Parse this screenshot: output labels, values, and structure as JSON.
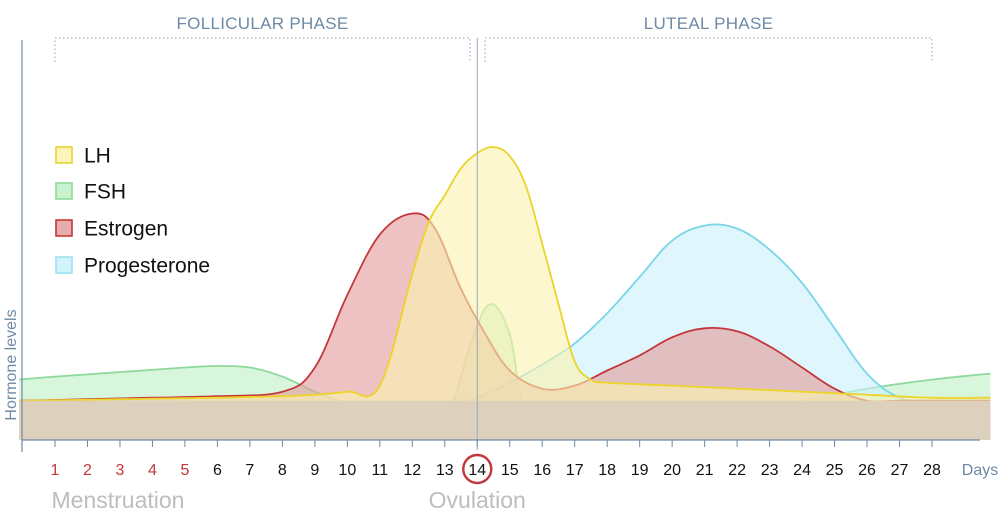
{
  "chart_data": {
    "type": "area",
    "ylabel": "Hormone levels",
    "xlabel": "Days",
    "x": [
      1,
      2,
      3,
      4,
      5,
      6,
      7,
      8,
      9,
      10,
      11,
      12,
      13,
      14,
      15,
      16,
      17,
      18,
      19,
      20,
      21,
      22,
      23,
      24,
      25,
      26,
      27,
      28
    ],
    "xlim": [
      -0.1,
      29.8
    ],
    "ylim": [
      0,
      1
    ],
    "menstruation_days": [
      1,
      2,
      3,
      4,
      5
    ],
    "ovulation_day": 14,
    "phases": [
      {
        "name": "FOLLICULAR PHASE",
        "start_day": 1,
        "end_day": 13.8
      },
      {
        "name": "LUTEAL PHASE",
        "start_day": 14.2,
        "end_day": 28
      }
    ],
    "annotations": {
      "menstruation": "Menstruation",
      "ovulation": "Ovulation"
    },
    "series": [
      {
        "name": "FSH",
        "color": "#9be3a8",
        "fill": "#bff0c6",
        "line": "#8fd99c",
        "points": [
          [
            -0.1,
            0.2
          ],
          [
            1,
            0.21
          ],
          [
            3,
            0.225
          ],
          [
            5,
            0.24
          ],
          [
            6,
            0.245
          ],
          [
            7,
            0.24
          ],
          [
            8,
            0.21
          ],
          [
            9,
            0.16
          ],
          [
            10,
            0.12
          ],
          [
            11,
            0.09
          ],
          [
            12,
            0.08
          ],
          [
            12.8,
            0.09
          ],
          [
            13.3,
            0.14
          ],
          [
            13.8,
            0.32
          ],
          [
            14.4,
            0.45
          ],
          [
            15,
            0.35
          ],
          [
            15.4,
            0.12
          ],
          [
            16,
            0.1
          ],
          [
            17,
            0.1
          ],
          [
            18,
            0.1
          ],
          [
            20,
            0.105
          ],
          [
            22,
            0.11
          ],
          [
            24,
            0.13
          ],
          [
            26,
            0.17
          ],
          [
            28,
            0.2
          ],
          [
            29.8,
            0.22
          ]
        ]
      },
      {
        "name": "Progesterone",
        "color": "#9fe3f2",
        "fill": "#c9f1fa",
        "line": "#7ad5ea",
        "points": [
          [
            -0.1,
            0.13
          ],
          [
            2,
            0.13
          ],
          [
            4,
            0.13
          ],
          [
            6,
            0.125
          ],
          [
            8,
            0.12
          ],
          [
            10,
            0.115
          ],
          [
            11,
            0.11
          ],
          [
            12,
            0.1
          ],
          [
            13,
            0.11
          ],
          [
            14,
            0.14
          ],
          [
            15,
            0.19
          ],
          [
            16,
            0.25
          ],
          [
            17,
            0.32
          ],
          [
            18,
            0.42
          ],
          [
            19,
            0.54
          ],
          [
            20,
            0.66
          ],
          [
            21,
            0.71
          ],
          [
            22,
            0.7
          ],
          [
            23,
            0.63
          ],
          [
            24,
            0.52
          ],
          [
            25,
            0.37
          ],
          [
            26,
            0.22
          ],
          [
            27,
            0.14
          ],
          [
            28,
            0.13
          ],
          [
            29.8,
            0.13
          ]
        ]
      },
      {
        "name": "Estrogen",
        "color": "#e08585",
        "fill": "#e49c9c",
        "line": "#c3373a",
        "points": [
          [
            -0.1,
            0.13
          ],
          [
            2,
            0.135
          ],
          [
            4,
            0.14
          ],
          [
            6,
            0.145
          ],
          [
            8,
            0.16
          ],
          [
            9,
            0.24
          ],
          [
            10,
            0.48
          ],
          [
            11,
            0.68
          ],
          [
            12,
            0.75
          ],
          [
            12.7,
            0.7
          ],
          [
            13.5,
            0.5
          ],
          [
            14.2,
            0.36
          ],
          [
            15,
            0.23
          ],
          [
            16,
            0.17
          ],
          [
            17,
            0.18
          ],
          [
            18,
            0.23
          ],
          [
            19,
            0.28
          ],
          [
            20,
            0.34
          ],
          [
            21,
            0.37
          ],
          [
            22,
            0.36
          ],
          [
            23,
            0.31
          ],
          [
            24,
            0.24
          ],
          [
            25,
            0.17
          ],
          [
            26,
            0.13
          ],
          [
            27,
            0.13
          ],
          [
            28,
            0.13
          ],
          [
            29.8,
            0.13
          ]
        ]
      },
      {
        "name": "LH",
        "color": "#f1e35a",
        "fill": "#faf2b0",
        "line": "#ecd42a",
        "points": [
          [
            -0.1,
            0.13
          ],
          [
            3,
            0.135
          ],
          [
            6,
            0.14
          ],
          [
            8,
            0.145
          ],
          [
            9,
            0.15
          ],
          [
            10,
            0.16
          ],
          [
            11,
            0.18
          ],
          [
            12,
            0.55
          ],
          [
            12.5,
            0.72
          ],
          [
            13,
            0.81
          ],
          [
            13.5,
            0.9
          ],
          [
            14,
            0.95
          ],
          [
            14.5,
            0.97
          ],
          [
            15,
            0.94
          ],
          [
            15.5,
            0.84
          ],
          [
            16,
            0.65
          ],
          [
            16.5,
            0.45
          ],
          [
            17,
            0.26
          ],
          [
            17.5,
            0.2
          ],
          [
            18,
            0.19
          ],
          [
            20,
            0.18
          ],
          [
            22,
            0.17
          ],
          [
            24,
            0.16
          ],
          [
            26,
            0.15
          ],
          [
            28,
            0.14
          ],
          [
            29.8,
            0.14
          ]
        ]
      },
      {
        "name": "Baseline",
        "color": "#ddd0bd",
        "fill": "#ddd0bd",
        "line": "#d6c7b2",
        "points": [
          [
            -0.1,
            0.13
          ],
          [
            29.8,
            0.13
          ]
        ]
      }
    ],
    "legend": [
      "LH",
      "FSH",
      "Estrogen",
      "Progesterone"
    ],
    "legend_position": "top-left"
  },
  "colors": {
    "axis": "#6e8aa6",
    "menstruation_day_color": "#c3373a",
    "day_color": "#111111",
    "phase_bracket": "#8fa6bf",
    "ovulation_line": "#9aa8b8",
    "ovulation_circle": "#c3373a",
    "legend_border": {
      "LH": "#e8d52a",
      "FSH": "#8fd99c",
      "Estrogen": "#c3373a",
      "Progesterone": "#9fe3f2"
    }
  }
}
